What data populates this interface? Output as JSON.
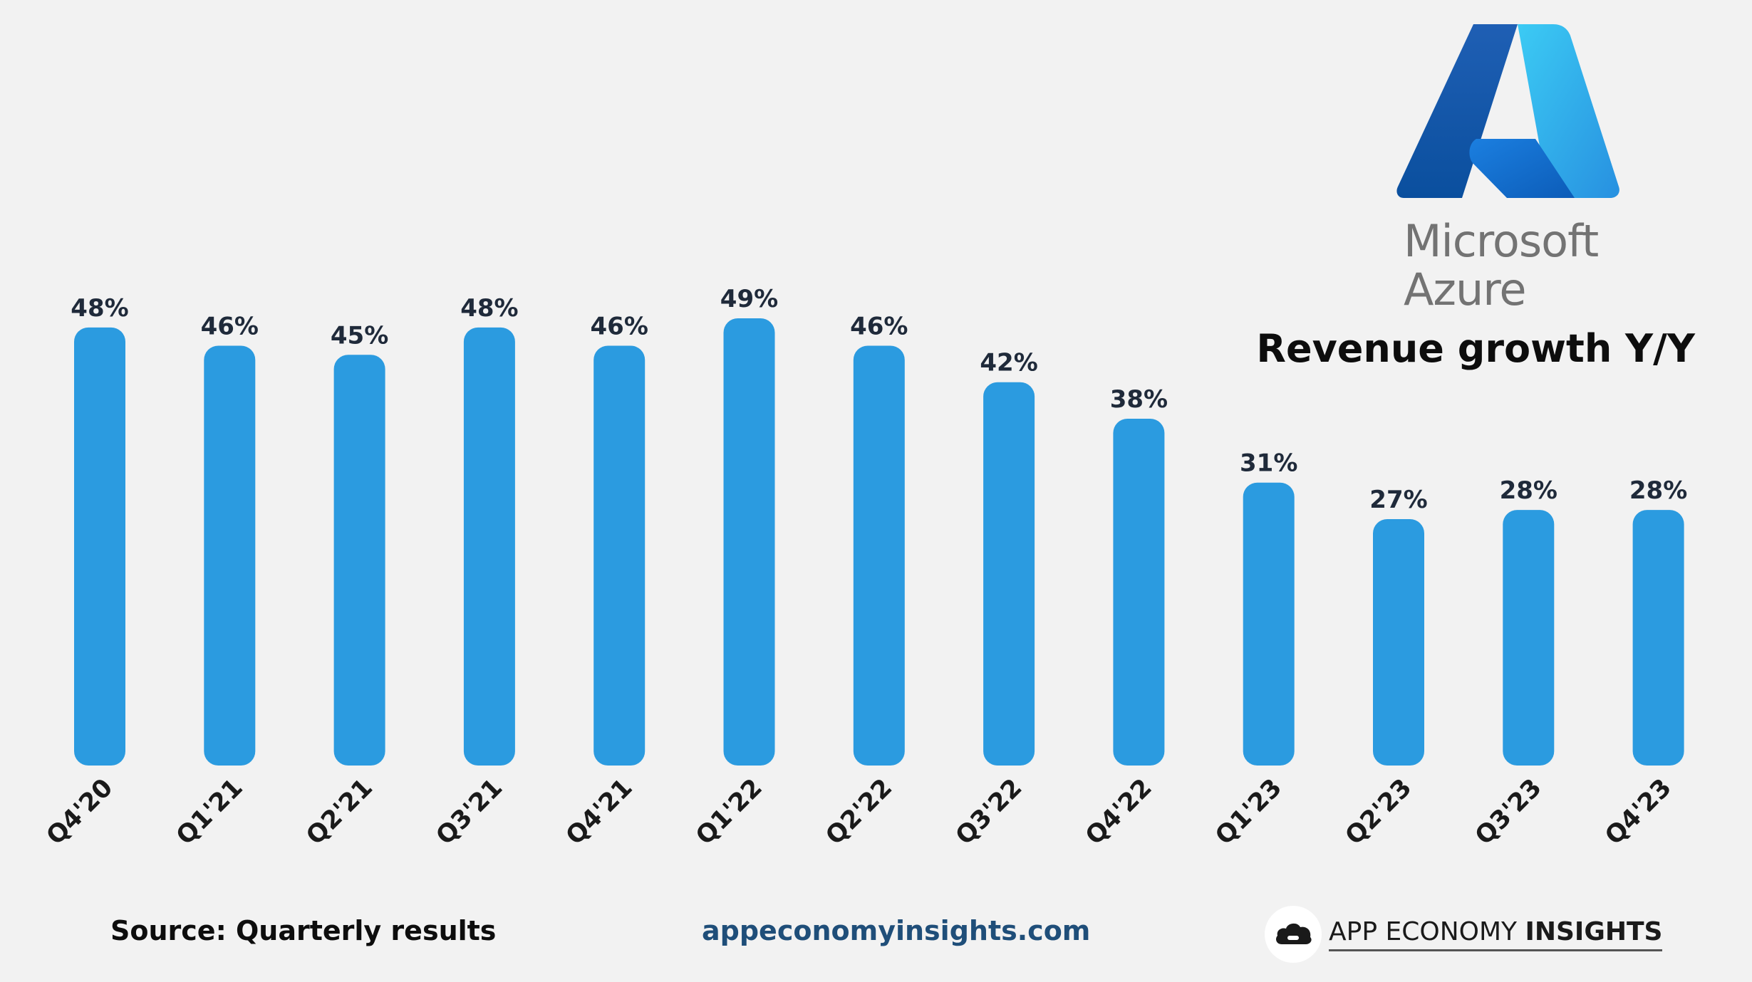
{
  "header": {
    "brand_line1": "Microsoft",
    "brand_line2": "Azure",
    "title": "Revenue growth Y/Y"
  },
  "footer": {
    "source": "Source: Quarterly results",
    "site": "appeconomyinsights.com",
    "brand_regular": "APP ECONOMY ",
    "brand_bold": "INSIGHTS"
  },
  "colors": {
    "bar": "#2b9be0",
    "logo_dark": "#0a4f9e",
    "logo_light": "#35c3f0"
  },
  "chart_data": {
    "type": "bar",
    "title": "Revenue growth Y/Y",
    "categories": [
      "Q4'20",
      "Q1'21",
      "Q2'21",
      "Q3'21",
      "Q4'21",
      "Q1'22",
      "Q2'22",
      "Q3'22",
      "Q4'22",
      "Q1'23",
      "Q2'23",
      "Q3'23",
      "Q4'23"
    ],
    "values": [
      48,
      46,
      45,
      48,
      46,
      49,
      46,
      42,
      38,
      31,
      27,
      28,
      28
    ],
    "value_labels": [
      "48%",
      "46%",
      "45%",
      "48%",
      "46%",
      "49%",
      "46%",
      "42%",
      "38%",
      "31%",
      "27%",
      "28%",
      "28%"
    ],
    "xlabel": "",
    "ylabel": "",
    "ylim": [
      0,
      49
    ],
    "grid": false,
    "legend": "none"
  }
}
